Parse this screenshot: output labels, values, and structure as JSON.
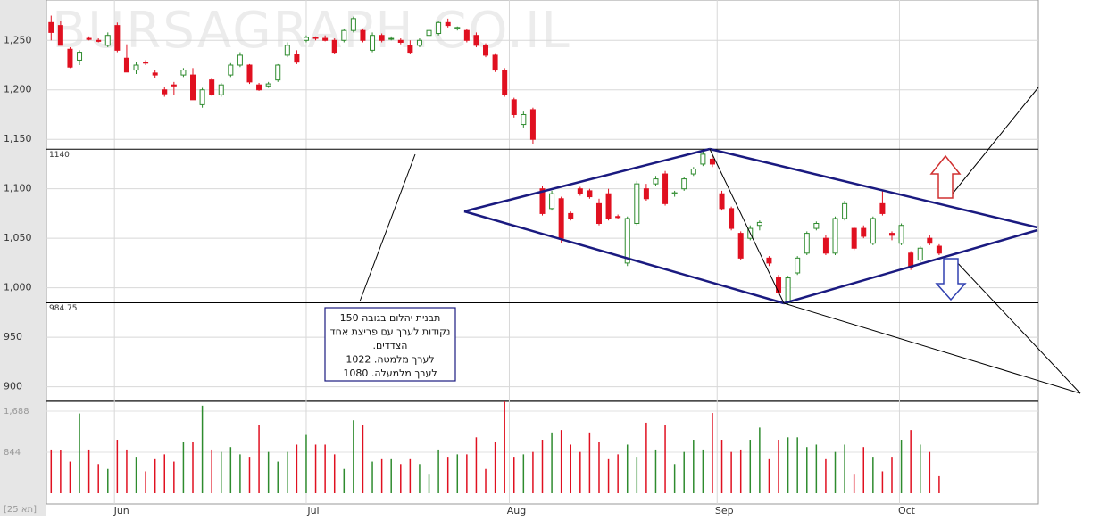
{
  "chart_data": {
    "type": "candlestick",
    "watermark": "BURSAGRAPH.CO.IL",
    "corner_label": "[25 תא]",
    "up_color": "#2e8b2e",
    "down_color": "#e01020",
    "ylim": [
      887,
      1289
    ],
    "yticks": [
      {
        "value": 1250,
        "label": "1,250"
      },
      {
        "value": 1200,
        "label": "1,200"
      },
      {
        "value": 1150,
        "label": "1,150"
      },
      {
        "value": 1100,
        "label": "1,100"
      },
      {
        "value": 1050,
        "label": "1,050"
      },
      {
        "value": 1000,
        "label": "1,000"
      },
      950,
      900
    ],
    "xlim": [
      -0.5,
      104.5
    ],
    "xticks": [
      {
        "value": 6.7,
        "label": "Jun"
      },
      {
        "value": 27,
        "label": "Jul"
      },
      {
        "value": 48.5,
        "label": "Aug"
      },
      {
        "value": 70.5,
        "label": "Sep"
      },
      {
        "value": 89.8,
        "label": "Oct"
      }
    ],
    "grid": true,
    "levels": [
      1140,
      984.75
    ],
    "ohlc": [
      [
        1268,
        1275,
        1250,
        1258
      ],
      [
        1265,
        1270,
        1245,
        1245
      ],
      [
        1241,
        1243,
        1222,
        1223
      ],
      [
        1230,
        1240,
        1225,
        1238
      ],
      [
        1252,
        1254,
        1250,
        1251
      ],
      [
        1250,
        1252,
        1248,
        1249
      ],
      [
        1245,
        1258,
        1243,
        1255
      ],
      [
        1265,
        1268,
        1238,
        1240
      ],
      [
        1232,
        1246,
        1218,
        1218
      ],
      [
        1220,
        1228,
        1216,
        1225
      ],
      [
        1228,
        1230,
        1225,
        1227
      ],
      [
        1217,
        1220,
        1212,
        1215
      ],
      [
        1200,
        1203,
        1193,
        1196
      ],
      [
        1205,
        1208,
        1195,
        1204
      ],
      [
        1215,
        1222,
        1213,
        1220
      ],
      [
        1215,
        1222,
        1190,
        1190
      ],
      [
        1185,
        1202,
        1182,
        1200
      ],
      [
        1210,
        1212,
        1194,
        1195
      ],
      [
        1195,
        1207,
        1193,
        1205
      ],
      [
        1215,
        1227,
        1213,
        1225
      ],
      [
        1225,
        1238,
        1223,
        1235
      ],
      [
        1225,
        1226,
        1206,
        1208
      ],
      [
        1205,
        1207,
        1199,
        1200
      ],
      [
        1204,
        1208,
        1202,
        1206
      ],
      [
        1210,
        1226,
        1208,
        1225
      ],
      [
        1235,
        1248,
        1233,
        1245
      ],
      [
        1236,
        1240,
        1226,
        1228
      ],
      [
        1250,
        1255,
        1248,
        1253
      ],
      [
        1253,
        1254,
        1250,
        1252
      ],
      [
        1252,
        1255,
        1249,
        1250
      ],
      [
        1250,
        1252,
        1236,
        1238
      ],
      [
        1250,
        1262,
        1248,
        1260
      ],
      [
        1260,
        1274,
        1258,
        1272
      ],
      [
        1260,
        1262,
        1248,
        1250
      ],
      [
        1240,
        1258,
        1238,
        1255
      ],
      [
        1255,
        1257,
        1248,
        1250
      ],
      [
        1252,
        1254,
        1250,
        1252
      ],
      [
        1250,
        1252,
        1246,
        1248
      ],
      [
        1245,
        1250,
        1236,
        1238
      ],
      [
        1245,
        1252,
        1243,
        1250
      ],
      [
        1255,
        1262,
        1253,
        1260
      ],
      [
        1257,
        1270,
        1255,
        1268
      ],
      [
        1268,
        1272,
        1263,
        1265
      ],
      [
        1262,
        1264,
        1260,
        1263
      ],
      [
        1260,
        1262,
        1248,
        1250
      ],
      [
        1255,
        1258,
        1243,
        1245
      ],
      [
        1245,
        1247,
        1233,
        1235
      ],
      [
        1235,
        1237,
        1218,
        1220
      ],
      [
        1220,
        1222,
        1193,
        1195
      ],
      [
        1190,
        1192,
        1172,
        1175
      ],
      [
        1165,
        1178,
        1162,
        1175
      ],
      [
        1180,
        1182,
        1145,
        1150
      ],
      [
        1100,
        1103,
        1073,
        1075
      ],
      [
        1080,
        1098,
        1078,
        1095
      ],
      [
        1090,
        1092,
        1045,
        1050
      ],
      [
        1075,
        1077,
        1068,
        1070
      ],
      [
        1100,
        1102,
        1093,
        1095
      ],
      [
        1098,
        1100,
        1090,
        1092
      ],
      [
        1085,
        1090,
        1063,
        1065
      ],
      [
        1095,
        1100,
        1068,
        1070
      ],
      [
        1072,
        1074,
        1070,
        1071
      ],
      [
        1025,
        1072,
        1022,
        1070
      ],
      [
        1065,
        1108,
        1063,
        1105
      ],
      [
        1100,
        1105,
        1088,
        1090
      ],
      [
        1105,
        1113,
        1103,
        1110
      ],
      [
        1115,
        1118,
        1083,
        1085
      ],
      [
        1095,
        1098,
        1092,
        1096
      ],
      [
        1100,
        1112,
        1098,
        1110
      ],
      [
        1115,
        1122,
        1113,
        1120
      ],
      [
        1125,
        1138,
        1123,
        1135
      ],
      [
        1130,
        1133,
        1122,
        1125
      ],
      [
        1095,
        1098,
        1078,
        1080
      ],
      [
        1080,
        1082,
        1058,
        1060
      ],
      [
        1055,
        1057,
        1028,
        1030
      ],
      [
        1050,
        1063,
        1048,
        1060
      ],
      [
        1063,
        1068,
        1058,
        1066
      ],
      [
        1030,
        1032,
        1022,
        1025
      ],
      [
        1010,
        1013,
        993,
        995
      ],
      [
        985,
        1012,
        983,
        1010
      ],
      [
        1015,
        1032,
        1013,
        1030
      ],
      [
        1035,
        1057,
        1033,
        1055
      ],
      [
        1060,
        1067,
        1058,
        1065
      ],
      [
        1050,
        1053,
        1033,
        1035
      ],
      [
        1035,
        1072,
        1033,
        1070
      ],
      [
        1070,
        1088,
        1068,
        1085
      ],
      [
        1060,
        1062,
        1038,
        1040
      ],
      [
        1060,
        1063,
        1050,
        1052
      ],
      [
        1045,
        1072,
        1043,
        1070
      ],
      [
        1085,
        1098,
        1073,
        1075
      ],
      [
        1055,
        1057,
        1048,
        1053
      ],
      [
        1045,
        1065,
        1043,
        1063
      ],
      [
        1035,
        1037,
        1018,
        1020
      ],
      [
        1028,
        1042,
        1026,
        1040
      ],
      [
        1050,
        1053,
        1043,
        1045
      ],
      [
        1042,
        1044,
        1033,
        1035
      ]
    ],
    "volume": {
      "ylim": [
        0,
        1889
      ],
      "yticks": [
        {
          "value": 1688,
          "label": "1,688"
        },
        844
      ],
      "values": [
        900,
        880,
        650,
        1640,
        900,
        600,
        500,
        1100,
        900,
        750,
        450,
        700,
        800,
        650,
        1050,
        1050,
        1800,
        900,
        850,
        950,
        800,
        750,
        1400,
        850,
        650,
        850,
        1000,
        1200,
        1000,
        1000,
        800,
        500,
        1500,
        1400,
        650,
        700,
        700,
        600,
        700,
        600,
        400,
        900,
        750,
        800,
        800,
        1150,
        500,
        1050,
        1889,
        750,
        800,
        850,
        1100,
        1250,
        1300,
        1000,
        850,
        1250,
        1050,
        700,
        800,
        1000,
        750,
        1450,
        900,
        1400,
        600,
        850,
        1100,
        900,
        1650,
        1100,
        850,
        900,
        1100,
        1350,
        700,
        1100,
        1150,
        1150,
        950,
        1000,
        700,
        850,
        1000,
        400,
        950,
        750,
        450,
        750,
        1100,
        1300,
        1000,
        850,
        350
      ]
    },
    "annotation": [
      "תבנית יהלום בגובה 150",
      "נקודות לערך עם פריצת אחד",
      "הצדדים.",
      "לערך מלמטה. 1022",
      "לערך מלמעלה. 1080"
    ]
  }
}
